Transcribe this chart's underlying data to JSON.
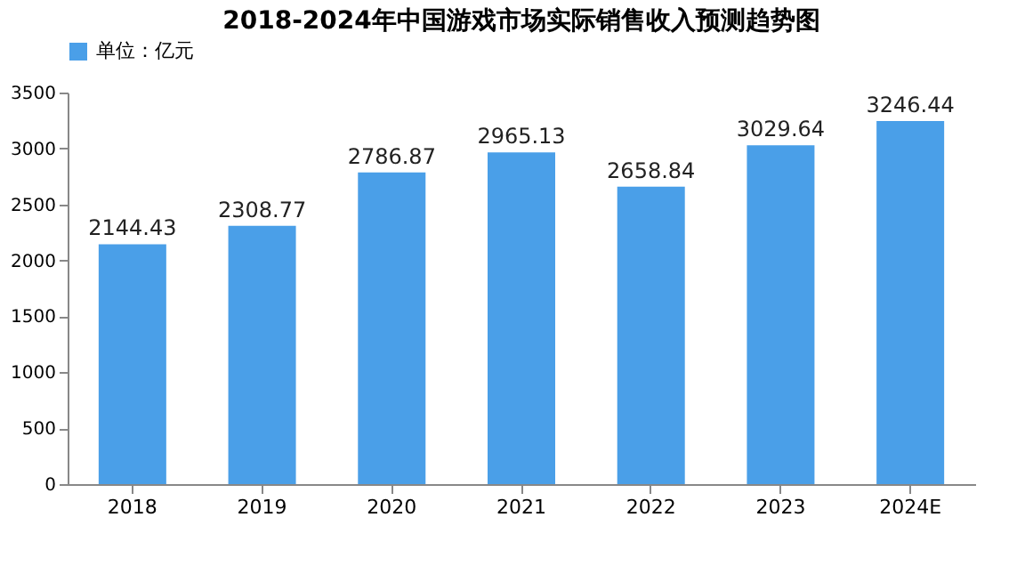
{
  "chart_data": {
    "type": "bar",
    "title": "2018-2024年中国游戏市场实际销售收入预测趋势图",
    "categories": [
      "2018",
      "2019",
      "2020",
      "2021",
      "2022",
      "2023",
      "2024E"
    ],
    "series": [
      {
        "name": "单位：亿元",
        "color": "#4a9fe8",
        "values": [
          2144.43,
          2308.77,
          2786.87,
          2965.13,
          2658.84,
          3029.64,
          3246.44
        ]
      }
    ],
    "ylim": [
      0,
      3500
    ],
    "yticks": [
      0,
      500,
      1000,
      1500,
      2000,
      2500,
      3000,
      3500
    ],
    "grid": false,
    "legend": "top",
    "data_labels": true
  }
}
